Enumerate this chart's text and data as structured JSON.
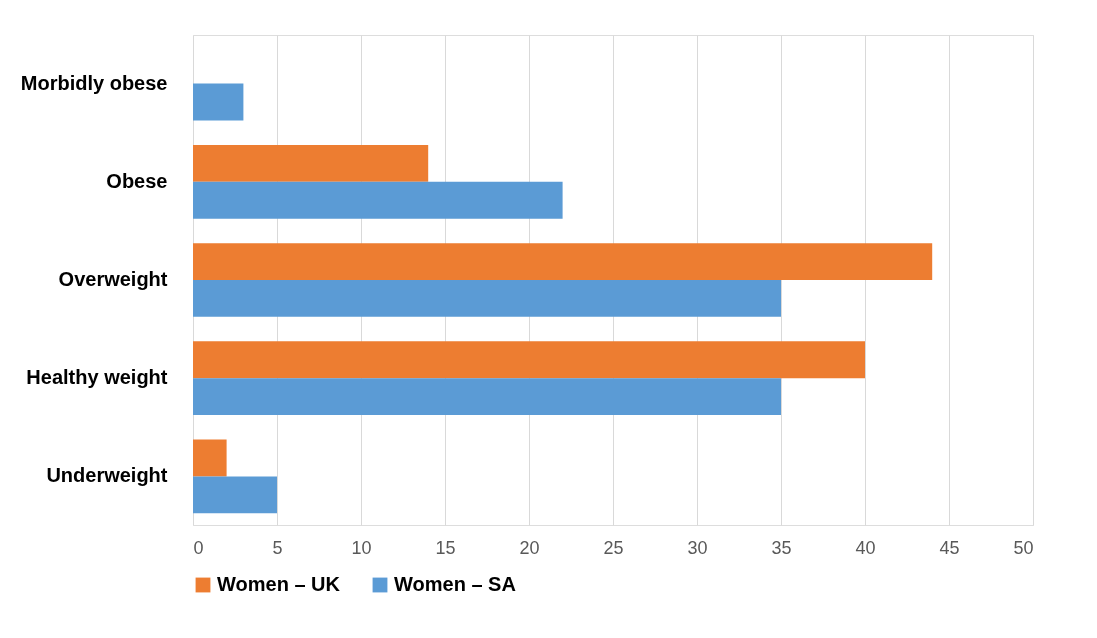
{
  "chart_data": {
    "type": "bar",
    "orientation": "horizontal",
    "categories": [
      "Morbidly obese",
      "Obese",
      "Overweight",
      "Healthy weight",
      "Underweight"
    ],
    "series": [
      {
        "name": "Women – UK",
        "color": "#ed7d31",
        "values": [
          null,
          14,
          44,
          40,
          2
        ]
      },
      {
        "name": "Women – SA",
        "color": "#5b9bd5",
        "values": [
          3,
          22,
          35,
          35,
          5
        ]
      }
    ],
    "xlim": [
      0,
      50
    ],
    "xticks": [
      0,
      5,
      10,
      15,
      20,
      25,
      30,
      35,
      40,
      45,
      50
    ],
    "grid": "x",
    "legend": "bottom"
  }
}
